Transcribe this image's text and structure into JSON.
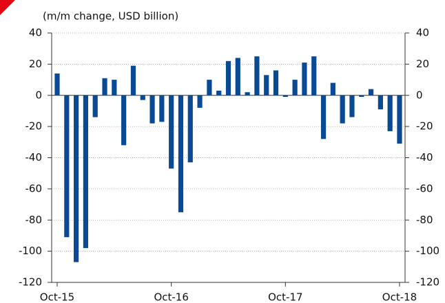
{
  "chart_data": {
    "type": "bar",
    "subtitle": "(m/m change, USD billion)",
    "categories": [
      "Oct-15",
      null,
      null,
      null,
      null,
      null,
      null,
      null,
      null,
      null,
      null,
      null,
      "Oct-16",
      null,
      null,
      null,
      null,
      null,
      null,
      null,
      null,
      null,
      null,
      null,
      "Oct-17",
      null,
      null,
      null,
      null,
      null,
      null,
      null,
      null,
      null,
      null,
      null,
      "Oct-18"
    ],
    "values": [
      14,
      -91,
      -107,
      -98,
      -14,
      11,
      10,
      -32,
      19,
      -3,
      -18,
      -17,
      -47,
      -75,
      -43,
      -8,
      10,
      3,
      22,
      24,
      2,
      25,
      13,
      16,
      -1,
      10,
      21,
      25,
      -28,
      8,
      -18,
      -14,
      -1,
      4,
      -9,
      -23,
      -31
    ],
    "color": "#0a4a94",
    "ylim": [
      -120,
      40
    ],
    "yticks": [
      -120,
      -100,
      -80,
      -60,
      -40,
      -20,
      0,
      20,
      40
    ],
    "grid": true
  }
}
